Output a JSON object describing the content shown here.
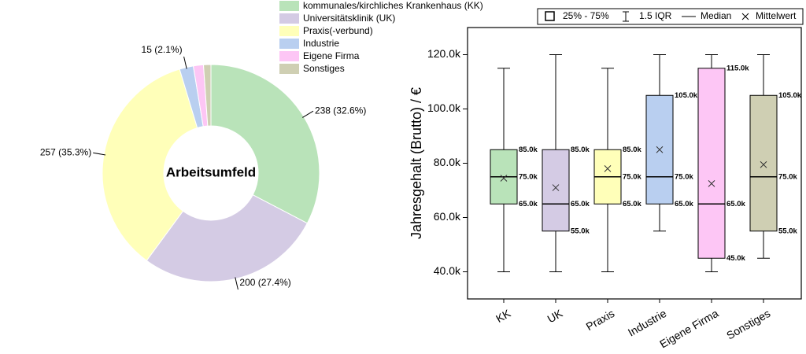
{
  "chart_data": [
    {
      "type": "donut",
      "title": "Arbeitsumfeld",
      "categories": [
        "kommunales/kirchliches Krankenhaus (KK)",
        "Universitätsklinik (UK)",
        "Praxis(-verbund)",
        "Industrie",
        "Eigene Firma",
        "Sonstiges"
      ],
      "values": [
        238,
        200,
        257,
        15,
        11,
        8
      ],
      "value_labels": [
        "238 (32.6%)",
        "200 (27.4%)",
        "257 (35.3%)",
        "15 (2.1%)",
        null,
        null
      ],
      "colors": [
        "#b9e3b9",
        "#d4cbe4",
        "#ffffb9",
        "#b9cff0",
        "#fdc6f5",
        "#cfcfb3"
      ]
    },
    {
      "type": "box",
      "categories": [
        "KK",
        "UK",
        "Praxis",
        "Industrie",
        "Eigene Firma",
        "Sonstiges"
      ],
      "colors": [
        "#b9e3b9",
        "#d4cbe4",
        "#ffffb9",
        "#b9cff0",
        "#fdc6f5",
        "#cfcfb3"
      ],
      "whisker_low": [
        40000,
        40000,
        40000,
        55000,
        40000,
        45000
      ],
      "q1": [
        65000,
        55000,
        65000,
        65000,
        45000,
        55000
      ],
      "median": [
        75000,
        65000,
        75000,
        75000,
        65000,
        75000
      ],
      "q3": [
        85000,
        85000,
        85000,
        105000,
        115000,
        105000
      ],
      "whisker_high": [
        115000,
        120000,
        115000,
        120000,
        120000,
        120000
      ],
      "mean": [
        74500,
        71000,
        78000,
        85000,
        72500,
        79500
      ],
      "value_labels": {
        "q1": [
          "65.0k",
          "55.0k",
          "65.0k",
          "65.0k",
          "45.0k",
          "55.0k"
        ],
        "median": [
          "75.0k",
          "65.0k",
          "75.0k",
          "75.0k",
          "65.0k",
          "75.0k"
        ],
        "q3": [
          "85.0k",
          "85.0k",
          "85.0k",
          "105.0k",
          "115.0k",
          "105.0k"
        ]
      },
      "legend": [
        "25% - 75%",
        "1.5 IQR",
        "Median",
        "Mittelwert"
      ],
      "ylabel": "Jahresgehalt (Brutto) / €",
      "ylim": [
        30000,
        130000
      ],
      "yticks": [
        {
          "value": 40000,
          "label": "40.0k"
        },
        {
          "value": 60000,
          "label": "60.0k"
        },
        {
          "value": 80000,
          "label": "80.0k"
        },
        {
          "value": 100000,
          "label": "100.0k"
        },
        {
          "value": 120000,
          "label": "120.0k"
        }
      ]
    }
  ]
}
